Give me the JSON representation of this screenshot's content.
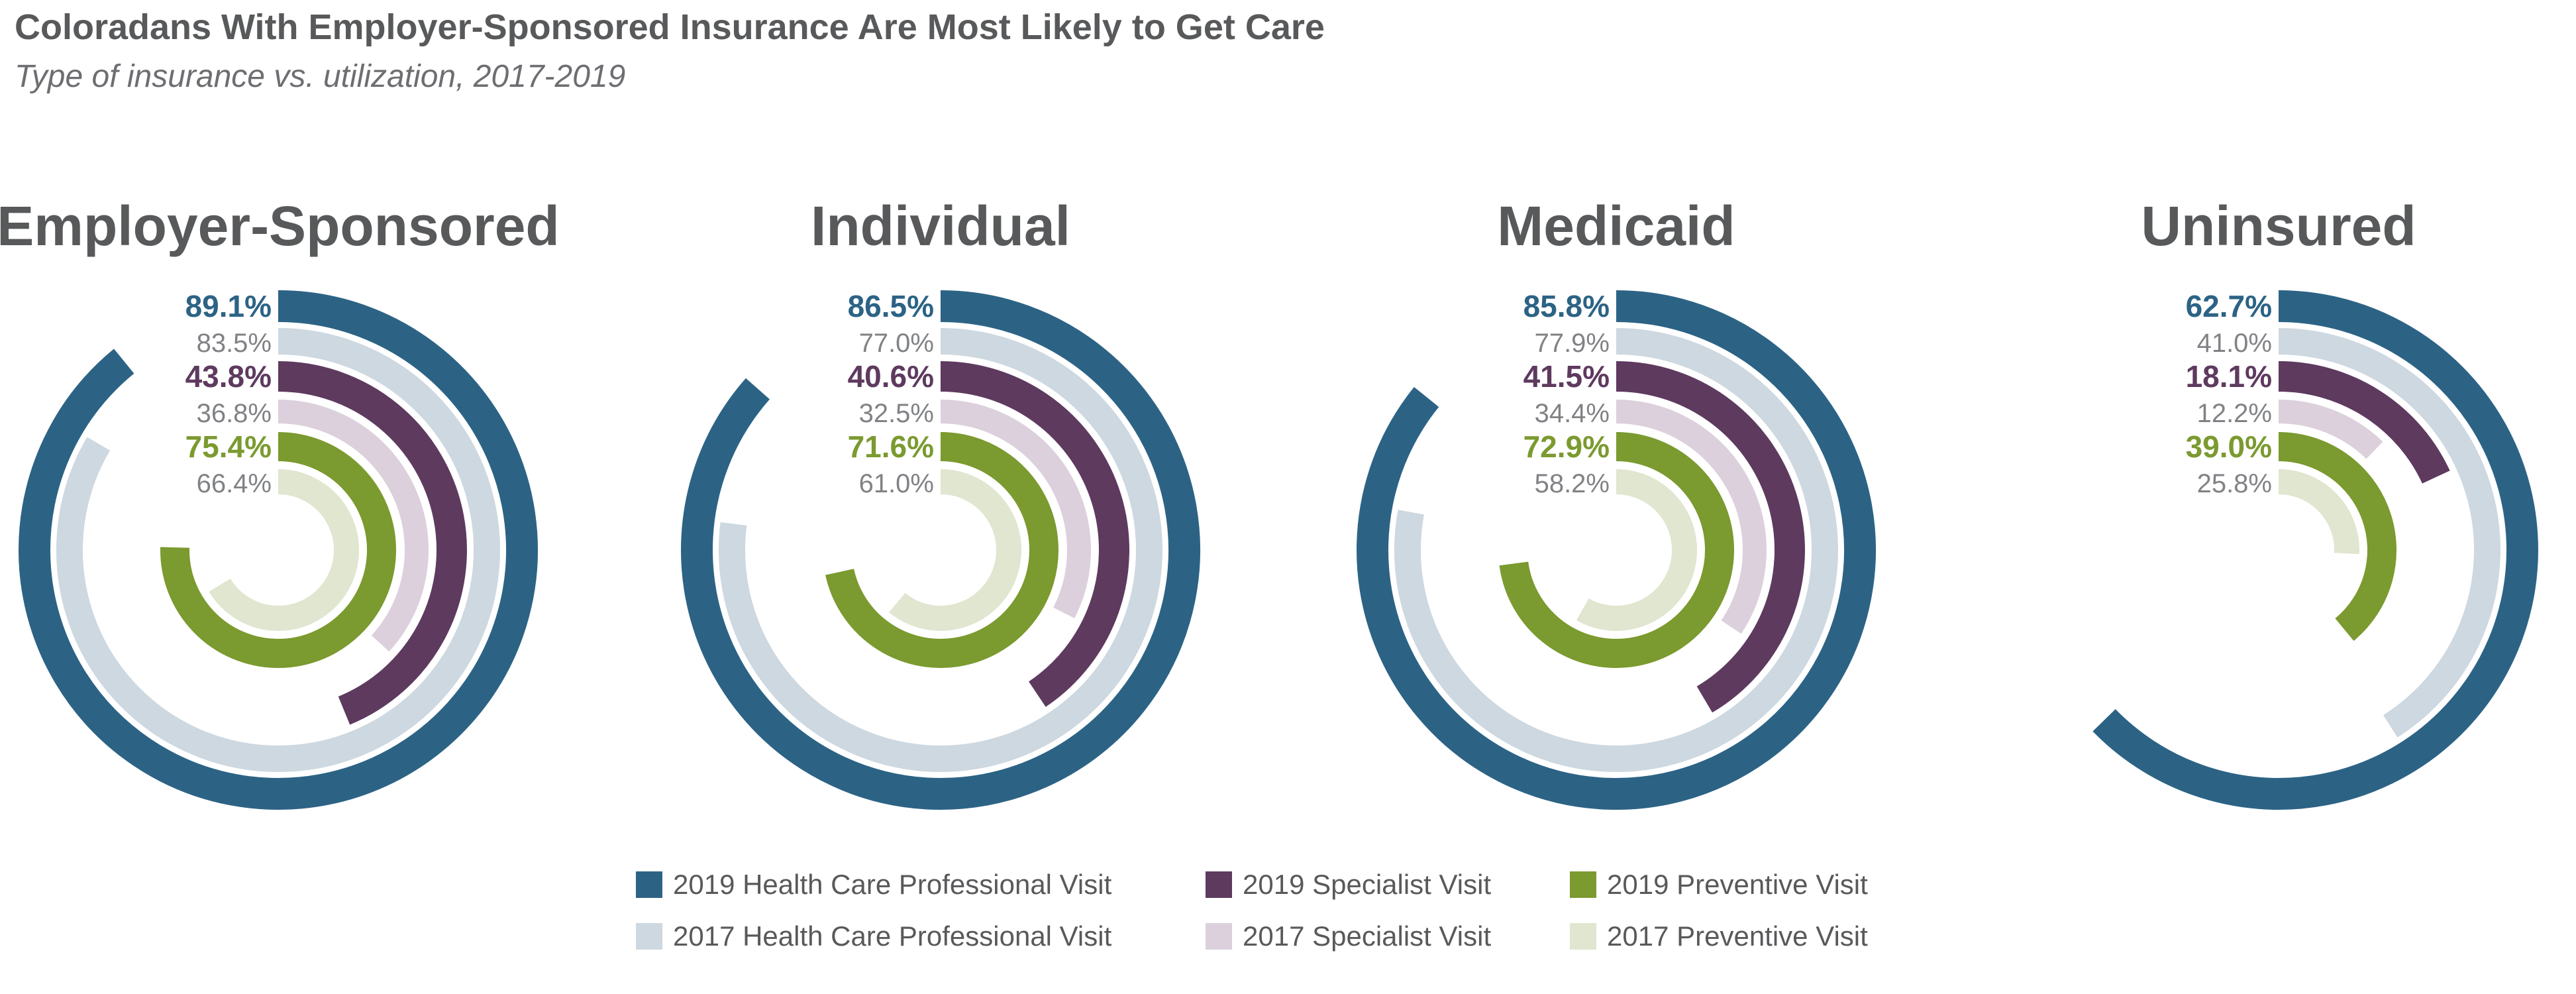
{
  "title": "Coloradans With Employer-Sponsored Insurance Are Most Likely to Get Care",
  "subtitle": "Type of insurance vs. utilization, 2017-2019",
  "chart_data": {
    "type": "radial-bar",
    "series": [
      {
        "name": "2019 Health Care Professional Visit",
        "color": "#2c6385",
        "label_color": "#2c6385",
        "bold": true
      },
      {
        "name": "2017 Health Care Professional Visit",
        "color": "#cdd8e0",
        "label_color": "#808285",
        "bold": false
      },
      {
        "name": "2019 Specialist Visit",
        "color": "#5e3a5f",
        "label_color": "#5e3a5f",
        "bold": true
      },
      {
        "name": "2017 Specialist Visit",
        "color": "#dbd0dc",
        "label_color": "#808285",
        "bold": false
      },
      {
        "name": "2019 Preventive Visit",
        "color": "#7b9a2f",
        "label_color": "#7b9a2f",
        "bold": true
      },
      {
        "name": "2017 Preventive Visit",
        "color": "#e0e6cf",
        "label_color": "#808285",
        "bold": false
      }
    ],
    "panels": [
      {
        "name": "Employer-Sponsored",
        "values": [
          89.1,
          83.5,
          43.8,
          36.8,
          75.4,
          66.4
        ],
        "labels": [
          "89.1%",
          "83.5%",
          "43.8%",
          "36.8%",
          "75.4%",
          "66.4%"
        ]
      },
      {
        "name": "Individual",
        "values": [
          86.5,
          77.0,
          40.6,
          32.5,
          71.6,
          61.0
        ],
        "labels": [
          "86.5%",
          "77.0%",
          "40.6%",
          "32.5%",
          "71.6%",
          "61.0%"
        ]
      },
      {
        "name": "Medicaid",
        "values": [
          85.8,
          77.9,
          41.5,
          34.4,
          72.9,
          58.2
        ],
        "labels": [
          "85.8%",
          "77.9%",
          "41.5%",
          "34.4%",
          "72.9%",
          "58.2%"
        ]
      },
      {
        "name": "Uninsured",
        "values": [
          62.7,
          41.0,
          18.1,
          12.2,
          39.0,
          25.8
        ],
        "labels": [
          "62.7%",
          "41.0%",
          "18.1%",
          "12.2%",
          "39.0%",
          "25.8%"
        ]
      }
    ]
  },
  "legend": [
    {
      "label": "2019 Health Care Professional Visit",
      "color": "#2c6385"
    },
    {
      "label": "2019 Specialist Visit",
      "color": "#5e3a5f"
    },
    {
      "label": "2019 Preventive Visit",
      "color": "#7b9a2f"
    },
    {
      "label": "2017 Health Care Professional Visit",
      "color": "#cdd8e0"
    },
    {
      "label": "2017 Specialist Visit",
      "color": "#dbd0dc"
    },
    {
      "label": "2017 Preventive Visit",
      "color": "#e0e6cf"
    }
  ]
}
